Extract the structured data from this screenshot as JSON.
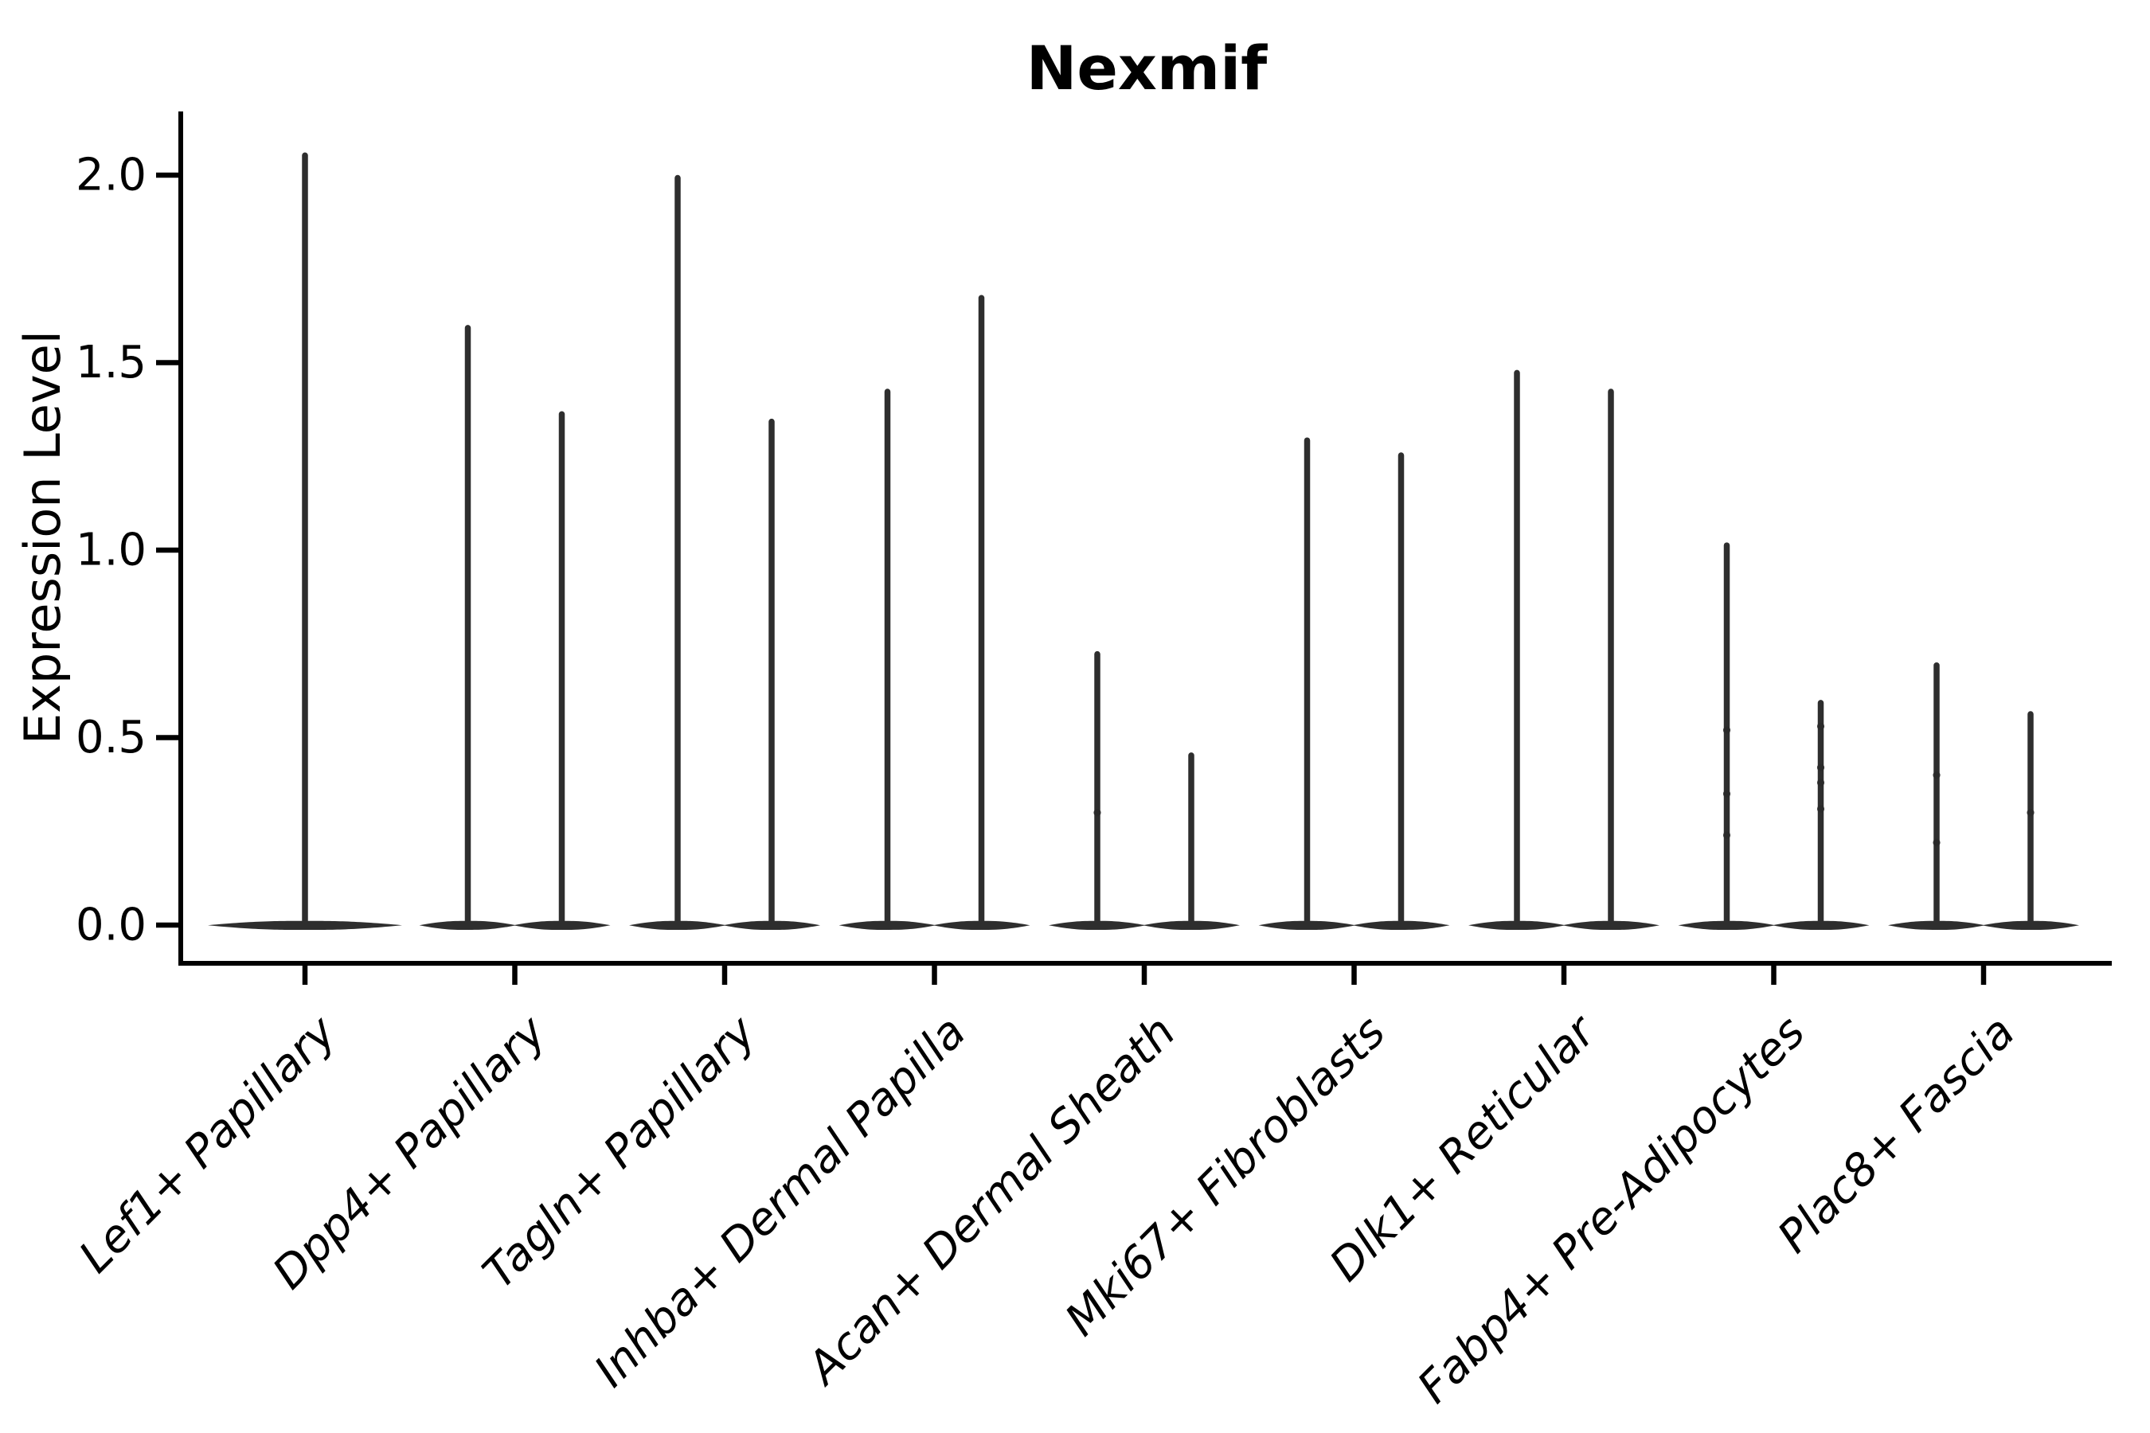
{
  "title": "Nexmif",
  "axes": {
    "ylabel": "Expression Level",
    "xlabel": "",
    "y_tick_labels": [
      "0.0",
      "0.5",
      "1.0",
      "1.5",
      "2.0"
    ],
    "x_tick_rotation_deg": 45
  },
  "chart_data": {
    "type": "violin",
    "title": "Nexmif",
    "ylabel": "Expression Level",
    "xlabel": "",
    "ylim": [
      -0.09,
      2.17
    ],
    "y_ticks": [
      0.0,
      0.5,
      1.0,
      1.5,
      2.0
    ],
    "grid": false,
    "legend_position": "none",
    "note": "Needle-like violins: density mass concentrated at expression 0, thin tail up to max",
    "categories": [
      "Lef1+ Papillary",
      "Dpp4+ Papillary",
      "Tagln+ Papillary",
      "Inhba+ Dermal Papilla",
      "Acan+ Dermal Sheath",
      "Mki67+ Fibroblasts",
      "Dlk1+ Reticular",
      "Fabp4+ Pre-Adipocytes",
      "Plac8+ Fascia"
    ],
    "groups": [
      {
        "category": "Lef1+ Papillary",
        "violins": [
          {
            "min": 0,
            "max": 2.06,
            "points": []
          }
        ]
      },
      {
        "category": "Dpp4+ Papillary",
        "violins": [
          {
            "min": 0,
            "max": 1.6,
            "points": []
          },
          {
            "min": 0,
            "max": 1.37,
            "points": []
          }
        ]
      },
      {
        "category": "Tagln+ Papillary",
        "violins": [
          {
            "min": 0,
            "max": 2.0,
            "points": []
          },
          {
            "min": 0,
            "max": 1.35,
            "points": []
          }
        ]
      },
      {
        "category": "Inhba+ Dermal Papilla",
        "violins": [
          {
            "min": 0,
            "max": 1.43,
            "points": []
          },
          {
            "min": 0,
            "max": 1.68,
            "points": []
          }
        ]
      },
      {
        "category": "Acan+ Dermal Sheath",
        "violins": [
          {
            "min": 0,
            "max": 0.73,
            "points": [
              0.3
            ]
          },
          {
            "min": 0,
            "max": 0.46,
            "points": []
          }
        ]
      },
      {
        "category": "Mki67+ Fibroblasts",
        "violins": [
          {
            "min": 0,
            "max": 1.3,
            "points": []
          },
          {
            "min": 0,
            "max": 1.26,
            "points": []
          }
        ]
      },
      {
        "category": "Dlk1+ Reticular",
        "violins": [
          {
            "min": 0,
            "max": 1.48,
            "points": []
          },
          {
            "min": 0,
            "max": 1.43,
            "points": []
          }
        ]
      },
      {
        "category": "Fabp4+ Pre-Adipocytes",
        "violins": [
          {
            "min": 0,
            "max": 1.02,
            "points": [
              0.52,
              0.35,
              0.24
            ]
          },
          {
            "min": 0,
            "max": 0.6,
            "points": [
              0.53,
              0.42,
              0.38,
              0.31
            ]
          }
        ]
      },
      {
        "category": "Plac8+ Fascia",
        "violins": [
          {
            "min": 0,
            "max": 0.7,
            "points": [
              0.4,
              0.22
            ]
          },
          {
            "min": 0,
            "max": 0.57,
            "points": [
              0.3
            ]
          }
        ]
      }
    ],
    "colors": {
      "violin_fill": "#2e2e2e",
      "jitter_point": "#2a2a2a",
      "axis": "#000000",
      "text": "#000000",
      "background": "#ffffff"
    }
  }
}
